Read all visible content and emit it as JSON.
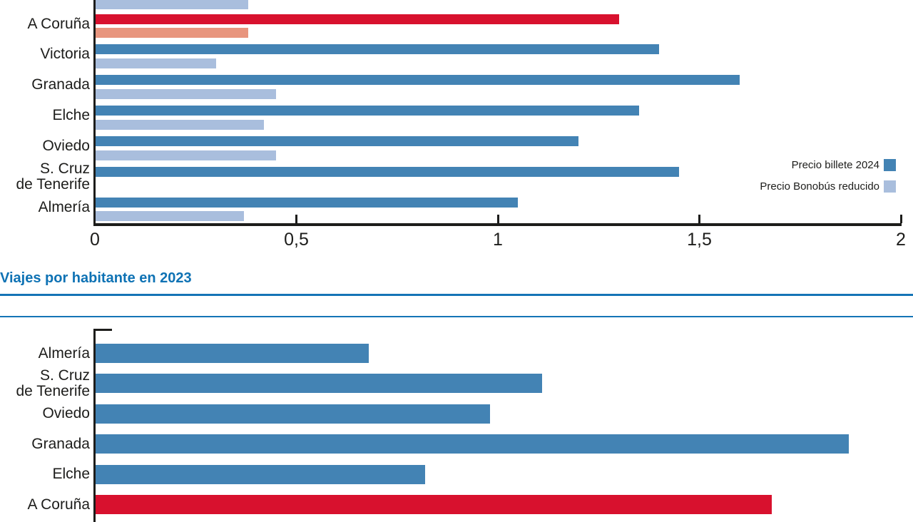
{
  "colors": {
    "bar_dark_blue": "#4383b4",
    "bar_light_blue": "#a9bedd",
    "bar_highlight_red": "#d8112e",
    "bar_highlight_salmon": "#e8957e",
    "title_blue": "#0e72b4",
    "rule_blue": "#1474b6",
    "axis_black": "#1d1d1b"
  },
  "chart_data": [
    {
      "id": "precios",
      "type": "bar",
      "orientation": "horizontal",
      "cropped_top": true,
      "legend_position": "right",
      "categories": [
        "",
        "A Coruña",
        "Victoria",
        "Granada",
        "Elche",
        "Oviedo",
        "S. Cruz\nde Tenerife",
        "Almería"
      ],
      "series": [
        {
          "name": "Precio billete 2024",
          "values": [
            null,
            1.3,
            1.4,
            1.6,
            1.35,
            1.2,
            1.45,
            1.05
          ]
        },
        {
          "name": "Precio Bonobús reducido",
          "values": [
            0.38,
            0.38,
            0.3,
            0.45,
            0.42,
            0.45,
            null,
            0.37
          ]
        }
      ],
      "highlight_category": "A Coruña",
      "xlim": [
        0,
        2
      ],
      "x_ticks": [
        {
          "value": 0,
          "label": "0"
        },
        {
          "value": 0.5,
          "label": "0,5"
        },
        {
          "value": 1,
          "label": "1"
        },
        {
          "value": 1.5,
          "label": "1,5"
        },
        {
          "value": 2,
          "label": "2"
        }
      ],
      "grid": false
    },
    {
      "id": "viajes",
      "type": "bar",
      "orientation": "horizontal",
      "title": "Viajes por habitante en 2023",
      "categories": [
        "Almería",
        "S. Cruz\nde Tenerife",
        "Oviedo",
        "Granada",
        "Elche",
        "A Coruña"
      ],
      "values": [
        0.68,
        1.11,
        0.98,
        1.87,
        0.82,
        1.68
      ],
      "highlight_category": "A Coruña",
      "xlim": [
        0,
        2
      ],
      "x_axis_visible": false,
      "grid": false
    }
  ]
}
